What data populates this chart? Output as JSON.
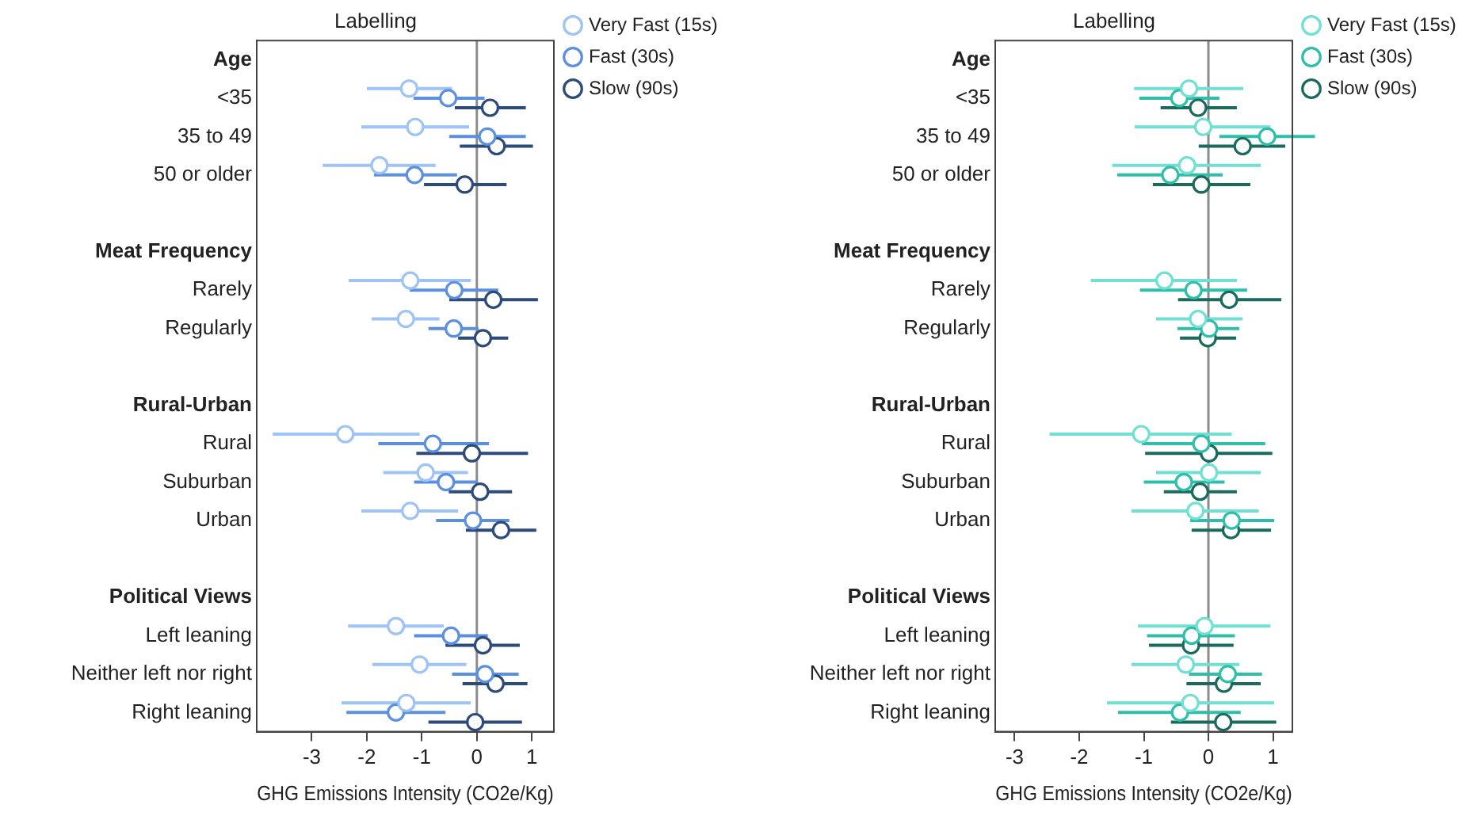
{
  "chart_data": [
    {
      "type": "scatter",
      "orientation": "horizontal",
      "title": "Labelling",
      "xlabel": "GHG Emissions Intensity (CO2e/Kg)",
      "categories": [
        "Age",
        "<35",
        "35 to 49",
        "50 or older",
        null,
        "Meat Frequency",
        "Rarely",
        "Regularly",
        null,
        "Rural-Urban",
        "Rural",
        "Suburban",
        "Urban",
        null,
        "Political Views",
        "Left leaning",
        "Neither left nor right",
        "Right leaning"
      ],
      "xlim": [
        -4,
        1.4
      ],
      "xticks": [
        -3,
        -2,
        -1,
        0,
        1
      ],
      "grid": false,
      "legend": "top right",
      "marker": "circle",
      "ref_lines": [
        {
          "axis": "x",
          "value": 0,
          "color": "#8c8c8c"
        }
      ],
      "series": [
        {
          "name": "Very Fast (15s)",
          "color": "#9dc3f7",
          "values": [
            null,
            -1.23,
            -1.12,
            -1.77,
            null,
            null,
            -1.21,
            -1.29,
            null,
            null,
            -2.39,
            -0.93,
            -1.21,
            null,
            null,
            -1.47,
            -1.04,
            -1.28
          ],
          "errors": [
            null,
            [
              -2.0,
              -0.45
            ],
            [
              -2.1,
              -0.14
            ],
            [
              -2.8,
              -0.75
            ],
            null,
            null,
            [
              -2.33,
              -0.11
            ],
            [
              -1.91,
              -0.68
            ],
            null,
            null,
            [
              -3.71,
              -1.04
            ],
            [
              -1.7,
              -0.16
            ],
            [
              -2.1,
              -0.34
            ],
            null,
            null,
            [
              -2.34,
              -0.6
            ],
            [
              -1.9,
              -0.19
            ],
            [
              -2.46,
              -0.11
            ]
          ]
        },
        {
          "name": "Fast (30s)",
          "color": "#5b8fe0",
          "values": [
            null,
            -0.52,
            0.19,
            -1.13,
            null,
            null,
            -0.41,
            -0.42,
            null,
            null,
            -0.8,
            -0.56,
            -0.07,
            null,
            null,
            -0.47,
            0.15,
            -1.47
          ],
          "errors": [
            null,
            [
              -1.15,
              0.14
            ],
            [
              -0.5,
              0.89
            ],
            [
              -1.87,
              -0.36
            ],
            null,
            null,
            [
              -1.22,
              0.39
            ],
            [
              -0.88,
              0.03
            ],
            null,
            null,
            [
              -1.79,
              0.22
            ],
            [
              -1.14,
              0.02
            ],
            [
              -0.74,
              0.59
            ],
            null,
            null,
            [
              -1.14,
              0.2
            ],
            [
              -0.45,
              0.76
            ],
            [
              -2.37,
              -0.57
            ]
          ]
        },
        {
          "name": "Slow (90s)",
          "color": "#2c4a7a",
          "values": [
            null,
            0.24,
            0.36,
            -0.22,
            null,
            null,
            0.3,
            0.11,
            null,
            null,
            -0.09,
            0.06,
            0.44,
            null,
            null,
            0.11,
            0.34,
            -0.03
          ],
          "errors": [
            null,
            [
              -0.4,
              0.89
            ],
            [
              -0.31,
              1.02
            ],
            [
              -0.96,
              0.54
            ],
            null,
            null,
            [
              -0.5,
              1.11
            ],
            [
              -0.34,
              0.57
            ],
            null,
            null,
            [
              -1.1,
              0.93
            ],
            [
              -0.51,
              0.64
            ],
            [
              -0.2,
              1.08
            ],
            null,
            null,
            [
              -0.57,
              0.78
            ],
            [
              -0.26,
              0.92
            ],
            [
              -0.88,
              0.82
            ]
          ]
        }
      ]
    },
    {
      "type": "scatter",
      "orientation": "horizontal",
      "title": "Labelling",
      "xlabel": "GHG Emissions Intensity (CO2e/Kg)",
      "categories": [
        "Age",
        "<35",
        "35 to 49",
        "50 or older",
        null,
        "Meat Frequency",
        "Rarely",
        "Regularly",
        null,
        "Rural-Urban",
        "Rural",
        "Suburban",
        "Urban",
        null,
        "Political Views",
        "Left leaning",
        "Neither left nor right",
        "Right leaning"
      ],
      "xlim": [
        -3.3,
        1.3
      ],
      "xticks": [
        -3,
        -2,
        -1,
        0,
        1
      ],
      "grid": false,
      "legend": "top right",
      "marker": "circle",
      "ref_lines": [
        {
          "axis": "x",
          "value": 0,
          "color": "#8c8c8c"
        }
      ],
      "series": [
        {
          "name": "Very Fast (15s)",
          "color": "#6fe0d3",
          "values": [
            null,
            -0.3,
            -0.08,
            -0.33,
            null,
            null,
            -0.68,
            -0.16,
            null,
            null,
            -1.04,
            0.01,
            -0.2,
            null,
            null,
            -0.06,
            -0.35,
            -0.28
          ],
          "errors": [
            null,
            [
              -1.15,
              0.54
            ],
            [
              -1.14,
              0.96
            ],
            [
              -1.49,
              0.81
            ],
            null,
            null,
            [
              -1.82,
              0.44
            ],
            [
              -0.81,
              0.53
            ],
            null,
            null,
            [
              -2.46,
              0.36
            ],
            [
              -0.81,
              0.81
            ],
            [
              -1.19,
              0.78
            ],
            null,
            null,
            [
              -1.09,
              0.96
            ],
            [
              -1.19,
              0.48
            ],
            [
              -1.57,
              1.02
            ]
          ]
        },
        {
          "name": "Fast (30s)",
          "color": "#2ebfaa",
          "values": [
            null,
            -0.45,
            0.91,
            -0.59,
            null,
            null,
            -0.23,
            0.01,
            null,
            null,
            -0.11,
            -0.38,
            0.36,
            null,
            null,
            -0.26,
            0.3,
            -0.44
          ],
          "errors": [
            null,
            [
              -1.07,
              0.17
            ],
            [
              0.17,
              1.65
            ],
            [
              -1.41,
              0.22
            ],
            null,
            null,
            [
              -1.06,
              0.6
            ],
            [
              -0.48,
              0.48
            ],
            null,
            null,
            [
              -1.03,
              0.88
            ],
            [
              -1.0,
              0.25
            ],
            [
              -0.28,
              1.02
            ],
            null,
            null,
            [
              -0.95,
              0.41
            ],
            [
              -0.3,
              0.83
            ],
            [
              -1.4,
              0.5
            ]
          ]
        },
        {
          "name": "Slow (90s)",
          "color": "#1a6b5c",
          "values": [
            null,
            -0.16,
            0.53,
            -0.11,
            null,
            null,
            0.32,
            -0.01,
            null,
            null,
            0.01,
            -0.13,
            0.35,
            null,
            null,
            -0.27,
            0.24,
            0.23
          ],
          "errors": [
            null,
            [
              -0.74,
              0.44
            ],
            [
              -0.15,
              1.19
            ],
            [
              -0.86,
              0.65
            ],
            null,
            null,
            [
              -0.47,
              1.13
            ],
            [
              -0.44,
              0.43
            ],
            null,
            null,
            [
              -0.98,
              0.99
            ],
            [
              -0.69,
              0.44
            ],
            [
              -0.26,
              0.97
            ],
            null,
            null,
            [
              -0.92,
              0.39
            ],
            [
              -0.34,
              0.81
            ],
            [
              -0.58,
              1.05
            ]
          ]
        }
      ]
    }
  ]
}
